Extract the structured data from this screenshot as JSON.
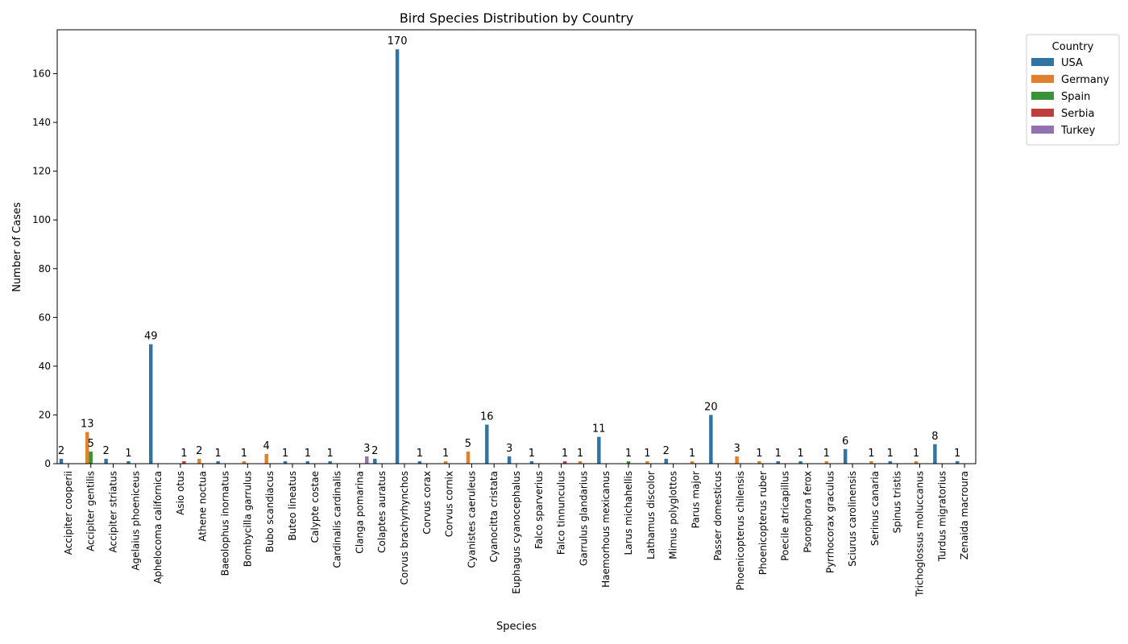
{
  "chart_data": {
    "type": "bar",
    "title": "Bird Species Distribution by Country",
    "xlabel": "Species",
    "ylabel": "Number of Cases",
    "ylim": [
      0,
      178
    ],
    "yticks": [
      0,
      20,
      40,
      60,
      80,
      100,
      120,
      140,
      160
    ],
    "grid": false,
    "legend": {
      "title": "Country",
      "placement": "outside-top-right"
    },
    "categories": [
      "Accipiter cooperii",
      "Accipiter gentilis",
      "Accipiter striatus",
      "Agelaius phoeniceus",
      "Aphelocoma californica",
      "Asio otus",
      "Athene noctua",
      "Baeolophus inornatus",
      "Bombycilla garrulus",
      "Bubo scandiacus",
      "Buteo lineatus",
      "Calypte costae",
      "Cardinalis cardinalis",
      "Clanga pomarina",
      "Colaptes auratus",
      "Corvus brachyrhynchos",
      "Corvus corax",
      "Corvus cornix",
      "Cyanistes caeruleus",
      "Cyanocitta cristata",
      "Euphagus cyanocephalus",
      "Falco sparverius",
      "Falco tinnunculus",
      "Garrulus glandarius",
      "Haemorhous mexicanus",
      "Larus michahellis",
      "Lathamus discolor",
      "Mimus polyglottos",
      "Parus major",
      "Passer domesticus",
      "Phoenicopterus chilensis",
      "Phoenicopterus ruber",
      "Poecile atricapillus",
      "Psorophora ferox",
      "Pyrrhocorax graculus",
      "Sciurus carolinensis",
      "Serinus canaria",
      "Spinus tristis",
      "Trichoglossus moluccanus",
      "Turdus migratorius",
      "Zenaida macroura"
    ],
    "series": [
      {
        "name": "USA",
        "color": "#3274a1",
        "values": [
          2,
          0,
          2,
          1,
          49,
          0,
          0,
          1,
          0,
          0,
          1,
          1,
          1,
          0,
          2,
          170,
          1,
          0,
          0,
          16,
          3,
          1,
          0,
          0,
          11,
          0,
          0,
          2,
          0,
          20,
          0,
          0,
          1,
          1,
          0,
          6,
          0,
          1,
          0,
          8,
          1
        ]
      },
      {
        "name": "Germany",
        "color": "#e1812c",
        "values": [
          0,
          13,
          0,
          0,
          0,
          0,
          2,
          0,
          1,
          4,
          0,
          0,
          0,
          0,
          0,
          0,
          0,
          1,
          5,
          0,
          0,
          0,
          0,
          1,
          0,
          0,
          1,
          0,
          1,
          0,
          3,
          1,
          0,
          0,
          1,
          0,
          1,
          0,
          1,
          0,
          0
        ]
      },
      {
        "name": "Spain",
        "color": "#3a923a",
        "values": [
          0,
          5,
          0,
          0,
          0,
          0,
          0,
          0,
          0,
          0,
          0,
          0,
          0,
          0,
          0,
          0,
          0,
          0,
          0,
          0,
          0,
          0,
          0,
          0,
          0,
          1,
          0,
          0,
          0,
          0,
          0,
          0,
          0,
          0,
          0,
          0,
          0,
          0,
          0,
          0,
          0
        ]
      },
      {
        "name": "Serbia",
        "color": "#c03d3e",
        "values": [
          0,
          0,
          0,
          0,
          0,
          1,
          0,
          0,
          0,
          0,
          0,
          0,
          0,
          0,
          0,
          0,
          0,
          0,
          0,
          0,
          0,
          0,
          1,
          0,
          0,
          0,
          0,
          0,
          0,
          0,
          0,
          0,
          0,
          0,
          0,
          0,
          0,
          0,
          0,
          0,
          0
        ]
      },
      {
        "name": "Turkey",
        "color": "#9372b2",
        "values": [
          0,
          0,
          0,
          0,
          0,
          0,
          0,
          0,
          0,
          0,
          0,
          0,
          0,
          3,
          0,
          0,
          0,
          0,
          0,
          0,
          0,
          0,
          0,
          0,
          0,
          0,
          0,
          0,
          0,
          0,
          0,
          0,
          0,
          0,
          0,
          0,
          0,
          0,
          0,
          0,
          0
        ]
      }
    ],
    "data_labels": [
      {
        "category": "Accipiter cooperii",
        "series": "USA",
        "text": "2"
      },
      {
        "category": "Accipiter gentilis",
        "series": "Germany",
        "text": "13"
      },
      {
        "category": "Accipiter gentilis",
        "series": "Spain",
        "text": "5"
      },
      {
        "category": "Accipiter striatus",
        "series": "USA",
        "text": "2"
      },
      {
        "category": "Agelaius phoeniceus",
        "series": "USA",
        "text": "1"
      },
      {
        "category": "Aphelocoma californica",
        "series": "USA",
        "text": "49"
      },
      {
        "category": "Asio otus",
        "series": "Serbia",
        "text": "1"
      },
      {
        "category": "Athene noctua",
        "series": "Germany",
        "text": "2"
      },
      {
        "category": "Baeolophus inornatus",
        "series": "USA",
        "text": "1"
      },
      {
        "category": "Bombycilla garrulus",
        "series": "Germany",
        "text": "1"
      },
      {
        "category": "Bubo scandiacus",
        "series": "Germany",
        "text": "4"
      },
      {
        "category": "Buteo lineatus",
        "series": "USA",
        "text": "1"
      },
      {
        "category": "Calypte costae",
        "series": "USA",
        "text": "1"
      },
      {
        "category": "Cardinalis cardinalis",
        "series": "USA",
        "text": "1"
      },
      {
        "category": "Clanga pomarina",
        "series": "Turkey",
        "text": "3"
      },
      {
        "category": "Colaptes auratus",
        "series": "USA",
        "text": "2"
      },
      {
        "category": "Corvus brachyrhynchos",
        "series": "USA",
        "text": "170"
      },
      {
        "category": "Corvus corax",
        "series": "USA",
        "text": "1"
      },
      {
        "category": "Corvus cornix",
        "series": "Germany",
        "text": "1"
      },
      {
        "category": "Cyanistes caeruleus",
        "series": "Germany",
        "text": "5"
      },
      {
        "category": "Cyanocitta cristata",
        "series": "USA",
        "text": "16"
      },
      {
        "category": "Euphagus cyanocephalus",
        "series": "USA",
        "text": "3"
      },
      {
        "category": "Falco sparverius",
        "series": "USA",
        "text": "1"
      },
      {
        "category": "Falco tinnunculus",
        "series": "Serbia",
        "text": "1"
      },
      {
        "category": "Garrulus glandarius",
        "series": "Germany",
        "text": "1"
      },
      {
        "category": "Haemorhous mexicanus",
        "series": "USA",
        "text": "11"
      },
      {
        "category": "Larus michahellis",
        "series": "Spain",
        "text": "1"
      },
      {
        "category": "Lathamus discolor",
        "series": "Germany",
        "text": "1"
      },
      {
        "category": "Mimus polyglottos",
        "series": "USA",
        "text": "2"
      },
      {
        "category": "Parus major",
        "series": "Germany",
        "text": "1"
      },
      {
        "category": "Passer domesticus",
        "series": "USA",
        "text": "20"
      },
      {
        "category": "Phoenicopterus chilensis",
        "series": "Germany",
        "text": "3"
      },
      {
        "category": "Phoenicopterus ruber",
        "series": "Germany",
        "text": "1"
      },
      {
        "category": "Poecile atricapillus",
        "series": "USA",
        "text": "1"
      },
      {
        "category": "Psorophora ferox",
        "series": "USA",
        "text": "1"
      },
      {
        "category": "Pyrrhocorax graculus",
        "series": "Germany",
        "text": "1"
      },
      {
        "category": "Sciurus carolinensis",
        "series": "USA",
        "text": "6"
      },
      {
        "category": "Serinus canaria",
        "series": "Germany",
        "text": "1"
      },
      {
        "category": "Spinus tristis",
        "series": "USA",
        "text": "1"
      },
      {
        "category": "Trichoglossus moluccanus",
        "series": "Germany",
        "text": "1"
      },
      {
        "category": "Turdus migratorius",
        "series": "USA",
        "text": "8"
      },
      {
        "category": "Zenaida macroura",
        "series": "USA",
        "text": "1"
      }
    ]
  }
}
